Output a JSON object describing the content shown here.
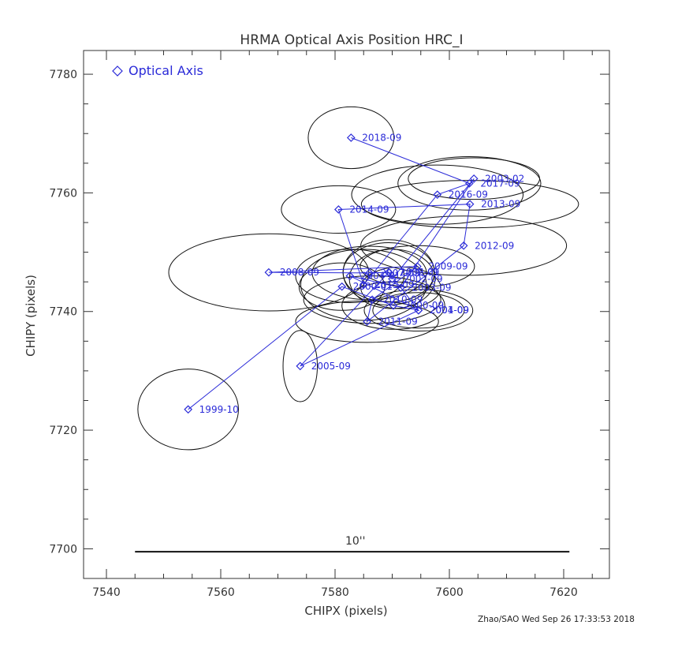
{
  "chart_data": {
    "type": "scatter",
    "title": "HRMA Optical Axis Position  HRC_I",
    "xlabel": "CHIPX (pixels)",
    "ylabel": "CHIPY (pixels)",
    "xlim": [
      7536,
      7628
    ],
    "ylim": [
      7695,
      7784
    ],
    "x_ticks": [
      7540,
      7560,
      7580,
      7600,
      7620
    ],
    "y_ticks": [
      7700,
      7720,
      7740,
      7760,
      7780
    ],
    "grid": false,
    "legend": {
      "position": "top-left",
      "entries": [
        "Optical Axis"
      ]
    },
    "colors": {
      "series": "#2a2ad8",
      "ellipse": "#111111",
      "axes": "#333333"
    },
    "scale_bar": {
      "label": "10''",
      "x_start": 7545,
      "x_end": 7621,
      "y": 7699.5
    },
    "series": [
      {
        "name": "Optical Axis",
        "points": [
          {
            "label": "1999-10",
            "x": 7554.3,
            "y": 7723.5,
            "rx": 8.8,
            "ry": 6.8
          },
          {
            "label": "2000-01",
            "x": 7581.2,
            "y": 7744.2,
            "rx": 7.5,
            "ry": 4.0
          },
          {
            "label": "2000-09",
            "x": 7590.2,
            "y": 7741.0,
            "rx": 9.0,
            "ry": 4.0
          },
          {
            "label": "2001-09",
            "x": 7594.6,
            "y": 7740.2,
            "rx": 8.0,
            "ry": 3.0
          },
          {
            "label": "2002-01",
            "x": 7589.4,
            "y": 7746.6,
            "rx": 8.0,
            "ry": 5.0
          },
          {
            "label": "2003-02",
            "x": 7604.3,
            "y": 7762.4,
            "rx": 11.5,
            "ry": 3.5
          },
          {
            "label": "2004-01",
            "x": 7582.6,
            "y": 7746.0,
            "rx": 9.5,
            "ry": 4.5
          },
          {
            "label": "2004-09",
            "x": 7594.6,
            "y": 7740.2,
            "rx": 9.5,
            "ry": 3.5
          },
          {
            "label": "2005-09",
            "x": 7573.9,
            "y": 7730.8,
            "rx": 3.0,
            "ry": 6.0
          },
          {
            "label": "2006-09",
            "x": 7589.4,
            "y": 7746.6,
            "rx": 8.0,
            "ry": 5.5
          },
          {
            "label": "2007-09",
            "x": 7586.0,
            "y": 7746.5,
            "rx": 10.0,
            "ry": 4.5
          },
          {
            "label": "2008-09",
            "x": 7568.4,
            "y": 7746.6,
            "rx": 17.5,
            "ry": 6.5
          },
          {
            "label": "2009-09",
            "x": 7594.4,
            "y": 7747.6,
            "rx": 10.0,
            "ry": 3.5
          },
          {
            "label": "2010-09",
            "x": 7586.5,
            "y": 7742.0,
            "rx": 12.0,
            "ry": 4.0
          },
          {
            "label": "2011-09",
            "x": 7585.6,
            "y": 7738.3,
            "rx": 12.5,
            "ry": 3.5
          },
          {
            "label": "2012-09",
            "x": 7602.5,
            "y": 7751.1,
            "rx": 18.0,
            "ry": 5.0
          },
          {
            "label": "2013-09",
            "x": 7603.6,
            "y": 7758.1,
            "rx": 19.0,
            "ry": 4.0
          },
          {
            "label": "2014-09",
            "x": 7580.6,
            "y": 7757.2,
            "rx": 10.0,
            "ry": 4.0
          },
          {
            "label": "2016-09",
            "x": 7597.9,
            "y": 7759.7,
            "rx": 15.0,
            "ry": 5.0
          },
          {
            "label": "2017-09",
            "x": 7603.5,
            "y": 7761.6,
            "rx": 12.5,
            "ry": 4.5
          },
          {
            "label": "2018-09",
            "x": 7582.8,
            "y": 7769.3,
            "rx": 7.5,
            "ry": 5.2
          },
          {
            "label": "2002-09",
            "x": 7590.0,
            "y": 7745.5,
            "rx": 7.5,
            "ry": 5.0
          },
          {
            "label": "2003-09",
            "x": 7591.5,
            "y": 7744.0,
            "rx": 7.0,
            "ry": 3.5
          },
          {
            "label": "2015-09",
            "x": 7585.0,
            "y": 7744.5,
            "rx": 11.0,
            "ry": 6.0
          }
        ],
        "line_order": [
          "1999-10",
          "2000-01",
          "2000-09",
          "2001-09",
          "2002-01",
          "2002-09",
          "2003-02",
          "2003-09",
          "2004-01",
          "2004-09",
          "2005-09",
          "2006-09",
          "2007-09",
          "2008-09",
          "2009-09",
          "2010-09",
          "2011-09",
          "2012-09",
          "2013-09",
          "2014-09",
          "2015-09",
          "2016-09",
          "2017-09",
          "2018-09"
        ]
      }
    ]
  },
  "footer": "Zhao/SAO Wed Sep 26 17:33:53 2018"
}
